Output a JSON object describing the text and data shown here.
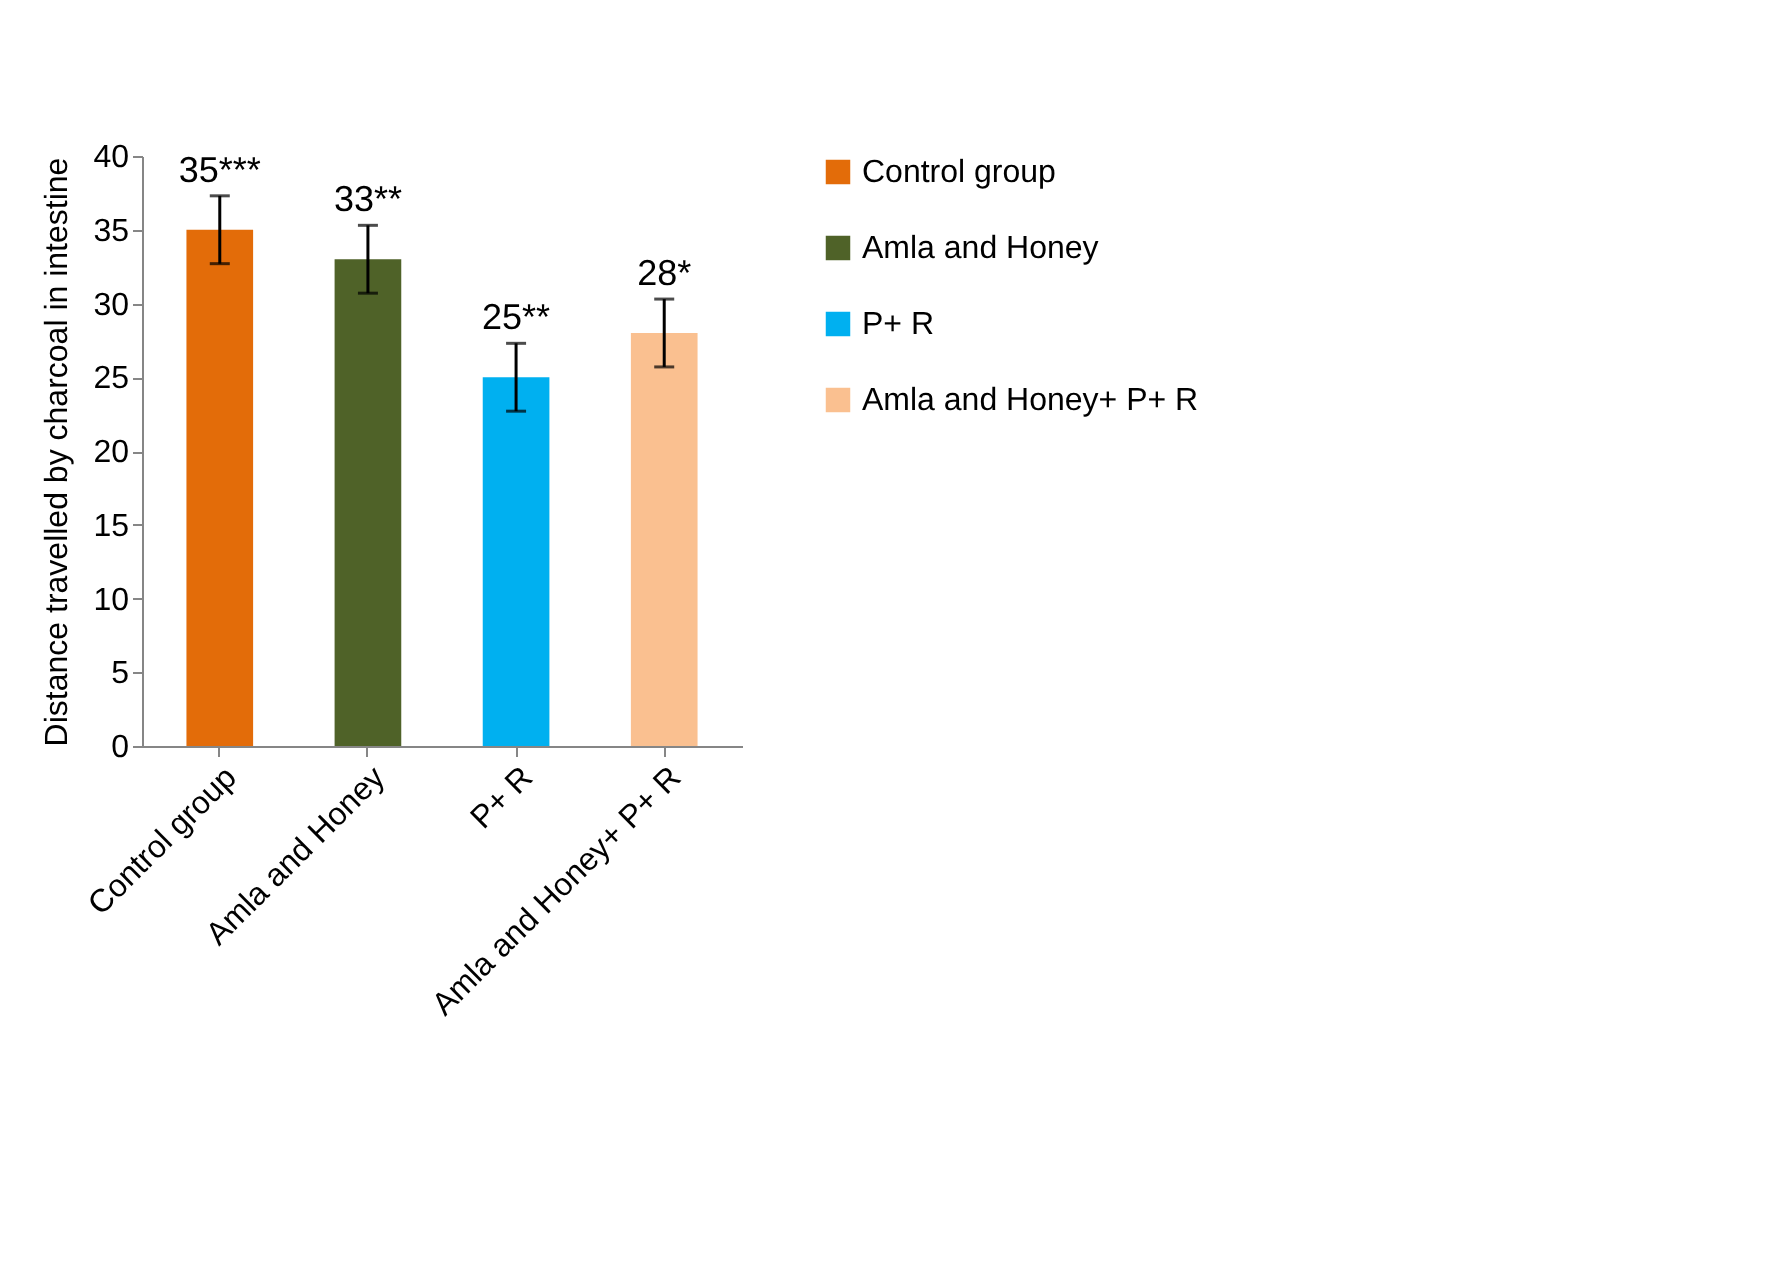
{
  "chart_data": {
    "type": "bar",
    "ylabel": "Distance travelled by charcoal in intestine",
    "categories": [
      "Control group",
      "Amla and Honey",
      "P+ R",
      "Amla and Honey+ P+ R"
    ],
    "series": [
      {
        "name": "Control group",
        "color": "#e36c09",
        "values": [
          35,
          null,
          null,
          null
        ],
        "errors": [
          2.3,
          null,
          null,
          null
        ],
        "value_labels": [
          "35***",
          null,
          null,
          null
        ]
      },
      {
        "name": "Amla and Honey",
        "color": "#4f6228",
        "values": [
          null,
          33,
          null,
          null
        ],
        "errors": [
          null,
          2.3,
          null,
          null
        ],
        "value_labels": [
          null,
          "33**",
          null,
          null
        ]
      },
      {
        "name": "P+ R",
        "color": "#00b0f0",
        "values": [
          null,
          null,
          25,
          null
        ],
        "errors": [
          null,
          null,
          2.3,
          null
        ],
        "value_labels": [
          null,
          null,
          "25**",
          null
        ]
      },
      {
        "name": "Amla and Honey+ P+ R",
        "color": "#fac090",
        "values": [
          null,
          null,
          null,
          28
        ],
        "errors": [
          null,
          null,
          null,
          2.3
        ],
        "value_labels": [
          null,
          null,
          null,
          "28*"
        ]
      }
    ],
    "ylim": [
      0,
      40
    ],
    "yticks": [
      0,
      5,
      10,
      15,
      20,
      25,
      30,
      35,
      40
    ],
    "grid": false,
    "legend": "right"
  }
}
